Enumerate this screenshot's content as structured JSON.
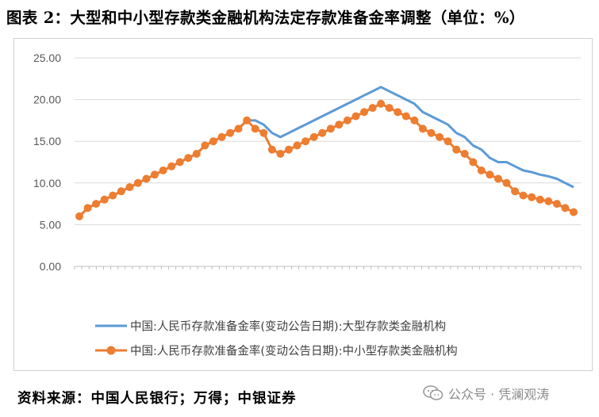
{
  "title": "图表 2：大型和中小型存款类金融机构法定存款准备金率调整（单位：%）",
  "source": "资料来源：中国人民银行；万得；中银证券",
  "watermark": {
    "text": "公众号 · 凭澜观涛",
    "icon": "wechat-icon"
  },
  "colors": {
    "large": "#5B9BD5",
    "small": "#ED7D31",
    "grid": "#D9D9D9",
    "axis": "#BFBFBF"
  },
  "chart_data": {
    "type": "line",
    "title": "",
    "xlabel": "",
    "ylabel": "",
    "ylim": [
      0,
      25
    ],
    "yticks": [
      "0.00",
      "5.00",
      "10.00",
      "15.00",
      "20.00",
      "25.00"
    ],
    "grid": true,
    "legend": "bottom",
    "series": [
      {
        "name": "中国:人民币存款准备金率(变动公告日期):大型存款类金融机构",
        "values": [
          6,
          7,
          7.5,
          8,
          8.5,
          9,
          9.5,
          10,
          10.5,
          11,
          11.5,
          12,
          12.5,
          13,
          13.5,
          14.5,
          15,
          15.5,
          16,
          16.5,
          17.5,
          17.5,
          17,
          16,
          15.5,
          16,
          16.5,
          17,
          17.5,
          18,
          18.5,
          19,
          19.5,
          20,
          20.5,
          21,
          21.5,
          21,
          20.5,
          20,
          19.5,
          18.5,
          18,
          17.5,
          17,
          16,
          15.5,
          14.5,
          14,
          13,
          12.5,
          12.5,
          12,
          11.5,
          11.3,
          11,
          10.8,
          10.5,
          10,
          9.5
        ]
      },
      {
        "name": "中国:人民币存款准备金率(变动公告日期):中小型存款类金融机构",
        "values": [
          6,
          7,
          7.5,
          8,
          8.5,
          9,
          9.5,
          10,
          10.5,
          11,
          11.5,
          12,
          12.5,
          13,
          13.5,
          14.5,
          15,
          15.5,
          16,
          16.5,
          17.5,
          16.5,
          16,
          14,
          13.5,
          14,
          14.5,
          15,
          15.5,
          16,
          16.5,
          17,
          17.5,
          18,
          18.5,
          19,
          19.5,
          19,
          18.5,
          18,
          17.5,
          16.5,
          16,
          15.5,
          15,
          14,
          13.5,
          12.5,
          11.5,
          11,
          10.5,
          10,
          9,
          8.5,
          8.3,
          8,
          7.8,
          7.5,
          7,
          6.5
        ]
      }
    ]
  }
}
